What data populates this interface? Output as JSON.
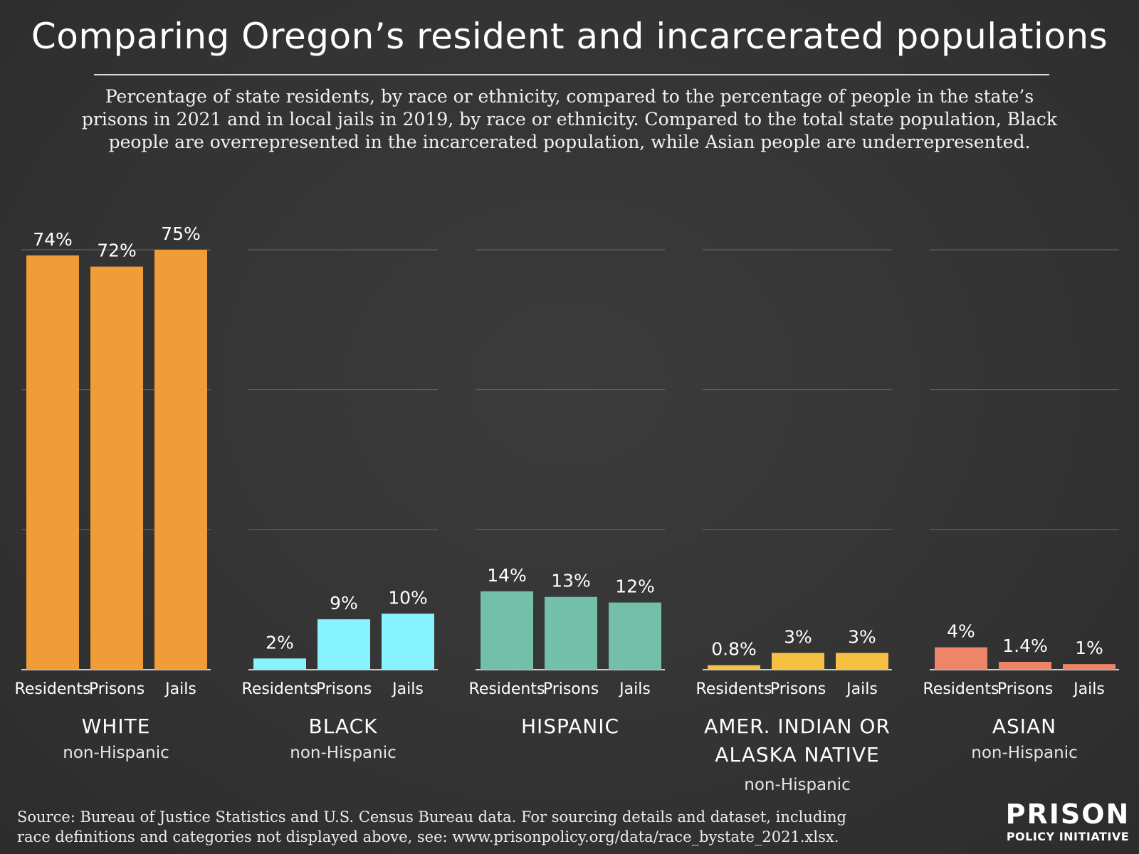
{
  "header": {
    "title": "Comparing Oregon’s resident and incarcerated populations",
    "subtitle": "Percentage of state residents, by race or ethnicity, compared to the percentage of people in the state’s prisons in 2021 and in local jails in 2019, by race or ethnicity. Compared to the total state population, Black people are overrepresented in the incarcerated population, while Asian people are underrepresented."
  },
  "footer": {
    "source_line1": "Source: Bureau of Justice Statistics and U.S. Census Bureau data. For sourcing details and dataset, including",
    "source_line2": "race definitions and categories not displayed above, see: www.prisonpolicy.org/data/race_bystate_2021.xlsx.",
    "logo_top": "PRISON",
    "logo_bottom": "POLICY INITIATIVE"
  },
  "chart_data": {
    "type": "bar",
    "title": "Comparing Oregon’s resident and incarcerated populations",
    "categories": [
      "Residents",
      "Prisons",
      "Jails"
    ],
    "ylim": [
      0,
      100
    ],
    "grid": true,
    "groups": [
      {
        "name": "WHITE",
        "name_line2": "",
        "sub": "non-Hispanic",
        "color": "#f09c38",
        "values": [
          74,
          72,
          75
        ],
        "labels": [
          "74%",
          "72%",
          "75%"
        ]
      },
      {
        "name": "BLACK",
        "name_line2": "",
        "sub": "non-Hispanic",
        "color": "#86f3ff",
        "values": [
          2,
          9,
          10
        ],
        "labels": [
          "2%",
          "9%",
          "10%"
        ]
      },
      {
        "name": "HISPANIC",
        "name_line2": "",
        "sub": "",
        "color": "#73bfaa",
        "values": [
          14,
          13,
          12
        ],
        "labels": [
          "14%",
          "13%",
          "12%"
        ]
      },
      {
        "name": "AMER. INDIAN OR",
        "name_line2": "ALASKA NATIVE",
        "sub": "non-Hispanic",
        "color": "#f5c142",
        "values": [
          0.8,
          3,
          3
        ],
        "labels": [
          "0.8%",
          "3%",
          "3%"
        ]
      },
      {
        "name": "ASIAN",
        "name_line2": "",
        "sub": "non-Hispanic",
        "color": "#ee8468",
        "values": [
          4,
          1.4,
          1
        ],
        "labels": [
          "4%",
          "1.4%",
          "1%"
        ]
      }
    ]
  }
}
